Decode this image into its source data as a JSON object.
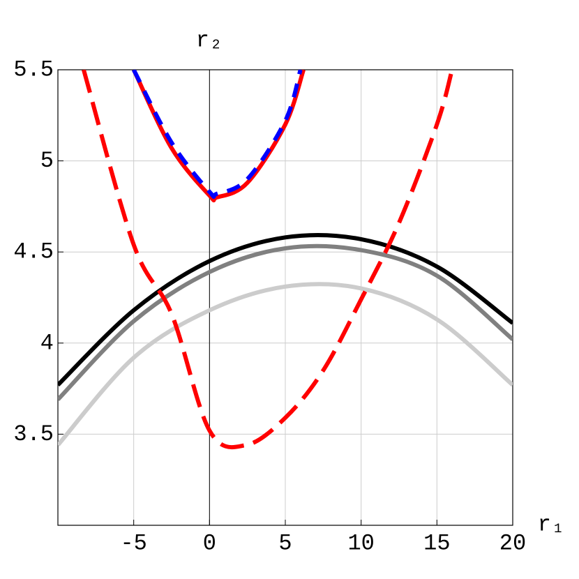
{
  "chart_data": {
    "type": "line",
    "x_label": "r₁",
    "y_label": "r₂",
    "xlim": [
      -10,
      20
    ],
    "ylim": [
      3,
      5.5
    ],
    "xticks": [
      -5,
      0,
      5,
      10,
      15,
      20
    ],
    "yticks": [
      3.5,
      4,
      4.5,
      5,
      5.5
    ],
    "grid": true,
    "series": [
      {
        "color": "#cccccc",
        "style": "solid",
        "x": [
          -10,
          -5,
          0,
          5,
          10,
          15,
          20
        ],
        "values": [
          3.44,
          3.92,
          4.18,
          4.31,
          4.3,
          4.13,
          3.77
        ]
      },
      {
        "color": "#808080",
        "style": "solid",
        "x": [
          -10,
          -5,
          0,
          5,
          10,
          15,
          20
        ],
        "values": [
          3.69,
          4.12,
          4.39,
          4.52,
          4.51,
          4.37,
          4.02
        ]
      },
      {
        "color": "#000000",
        "style": "solid",
        "x": [
          -10,
          -5,
          0,
          5,
          10,
          15,
          20
        ],
        "values": [
          3.77,
          4.18,
          4.45,
          4.58,
          4.57,
          4.42,
          4.11
        ]
      },
      {
        "color": "#ff0000",
        "style": "dashed",
        "x": [
          -8.3,
          -5,
          -2.5,
          0,
          2.4,
          5,
          7.5,
          10,
          12.5,
          15,
          16
        ],
        "values": [
          5.5,
          4.54,
          4.16,
          3.52,
          3.44,
          3.59,
          3.85,
          4.24,
          4.66,
          5.2,
          5.5
        ]
      },
      {
        "color": "#ff0000",
        "style": "solid",
        "x": [
          -5,
          -2.5,
          0,
          0.5,
          2.5,
          5,
          6.2
        ],
        "values": [
          5.5,
          5.07,
          4.81,
          4.8,
          4.88,
          5.2,
          5.5
        ]
      },
      {
        "color": "#0000ff",
        "style": "dashed",
        "x": [
          -5,
          -2.5,
          0,
          0.5,
          2.5,
          5,
          6
        ],
        "values": [
          5.5,
          5.1,
          4.83,
          4.82,
          4.9,
          5.22,
          5.5
        ]
      }
    ]
  }
}
